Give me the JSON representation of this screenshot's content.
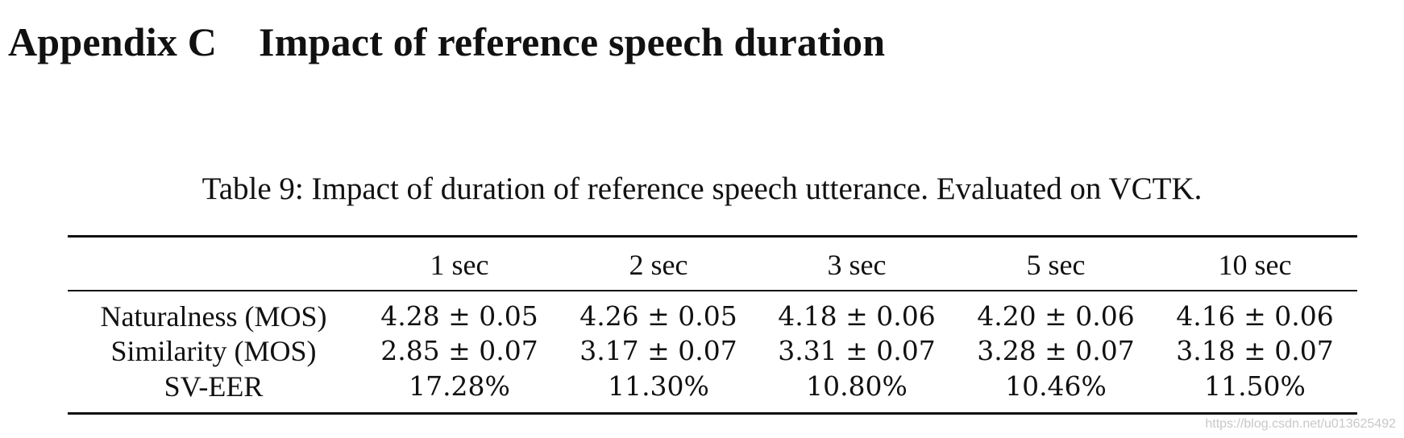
{
  "section": {
    "number": "Appendix C",
    "title": "Impact of reference speech duration"
  },
  "table": {
    "caption": "Table 9: Impact of duration of reference speech utterance. Evaluated on VCTK.",
    "columns": [
      "1 sec",
      "2 sec",
      "3 sec",
      "5 sec",
      "10 sec"
    ],
    "rows": [
      {
        "label": "Naturalness (MOS)",
        "values": [
          "4.28 ± 0.05",
          "4.26 ± 0.05",
          "4.18 ± 0.06",
          "4.20 ± 0.06",
          "4.16 ± 0.06"
        ]
      },
      {
        "label": "Similarity (MOS)",
        "values": [
          "2.85 ± 0.07",
          "3.17 ± 0.07",
          "3.31 ± 0.07",
          "3.28 ± 0.07",
          "3.18 ± 0.07"
        ]
      },
      {
        "label": "SV-EER",
        "values": [
          "17.28%",
          "11.30%",
          "10.80%",
          "10.46%",
          "11.50%"
        ]
      }
    ]
  },
  "watermark": "https://blog.csdn.net/u013625492"
}
